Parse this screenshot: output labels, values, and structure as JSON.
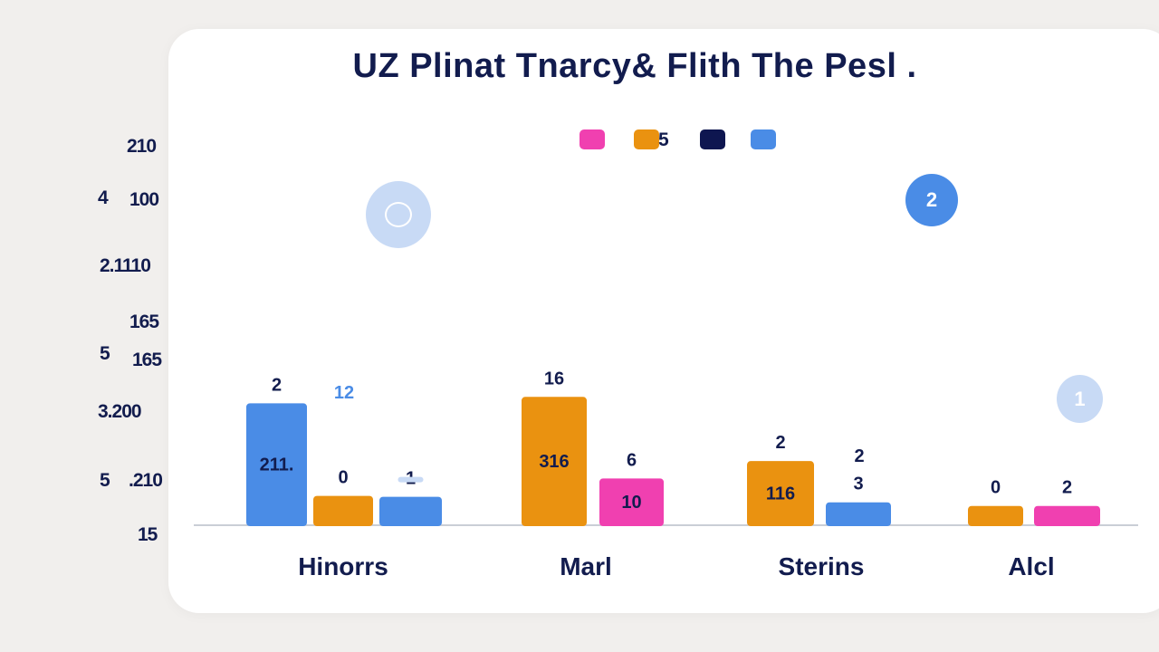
{
  "title": "UZ Plinat Tnarcy& Flith The Pesl .",
  "legend": {
    "items": [
      {
        "color": "#f040b0",
        "label": ""
      },
      {
        "color": "#ea9210",
        "label": "5"
      },
      {
        "color": "#0e1650",
        "label": ""
      },
      {
        "color": "#4a8ce6",
        "label": ""
      }
    ]
  },
  "y_axis": {
    "ticks": [
      {
        "prefix": "",
        "text": "210"
      },
      {
        "prefix": "4",
        "text": "100"
      },
      {
        "prefix": "",
        "text": "2.1110"
      },
      {
        "prefix": "",
        "text": "165"
      },
      {
        "prefix": "5",
        "text": "165"
      },
      {
        "prefix": "",
        "text": "3.200"
      },
      {
        "prefix": "5",
        "text": ".210"
      },
      {
        "prefix": "",
        "text": "15"
      }
    ]
  },
  "decorations": {
    "circle_left_icon": "ring-icon",
    "circle_right_text": "2",
    "circle_small_text": "1"
  },
  "chart_data": {
    "type": "bar",
    "title": "UZ Plinat Tnarcy& Flith The Pesl .",
    "categories": [
      "Hinorrs",
      "Marl",
      "Sterins",
      "Alcl"
    ],
    "colors": {
      "blue": "#4a8ce6",
      "orange": "#ea9210",
      "pink": "#f040b0",
      "navy": "#0e1650"
    },
    "groups": [
      {
        "category": "Hinorrs",
        "bars": [
          {
            "color": "blue",
            "value": 133,
            "inner_label": "211.",
            "top_label": "2"
          },
          {
            "color": "orange",
            "value": 32,
            "inner_label": "",
            "top_label": "0"
          },
          {
            "color": "blue",
            "value": 31,
            "inner_label": "",
            "top_label": "1",
            "marker": true
          }
        ],
        "extra_labels": [
          {
            "text": "12",
            "color": "#4a8ce6"
          }
        ]
      },
      {
        "category": "Marl",
        "bars": [
          {
            "color": "orange",
            "value": 140,
            "inner_label": "316",
            "top_label": "16"
          },
          {
            "color": "pink",
            "value": 51,
            "inner_label": "10",
            "top_label": "6"
          }
        ],
        "extra_labels": []
      },
      {
        "category": "Sterins",
        "bars": [
          {
            "color": "orange",
            "value": 70,
            "inner_label": "116",
            "top_label": "2"
          },
          {
            "color": "blue",
            "value": 25,
            "inner_label": "",
            "top_label": "3"
          }
        ],
        "extra_labels": [
          {
            "text": "2",
            "color": "#121c4e"
          }
        ]
      },
      {
        "category": "Alcl",
        "bars": [
          {
            "color": "orange",
            "value": 21,
            "inner_label": "",
            "top_label": "0"
          },
          {
            "color": "pink",
            "value": 21,
            "inner_label": "",
            "top_label": "2"
          }
        ],
        "extra_labels": []
      }
    ],
    "ylim": [
      0,
      410
    ],
    "grid": false,
    "legend_position": "top-center"
  }
}
